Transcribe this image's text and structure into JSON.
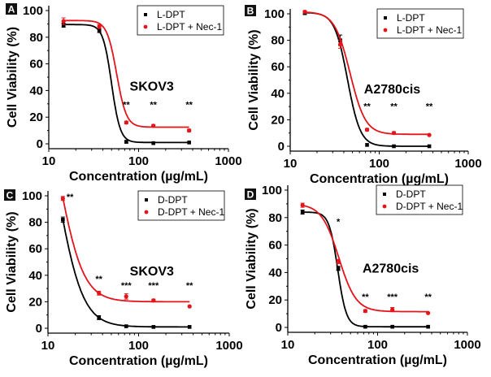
{
  "colors": {
    "control": "#000000",
    "nec": "#e3141a"
  },
  "chart_data": [
    {
      "panel": "A",
      "type": "scatter+line",
      "cell_line": "SKOV3",
      "xlabel": "Concentration (µg/mL)",
      "ylabel": "Cell Viability (%)",
      "xscale": "log",
      "xlim": [
        10,
        1000
      ],
      "ylim": [
        0,
        100
      ],
      "xticks": [
        "10",
        "100",
        "1000"
      ],
      "yticks": [
        "0",
        "20",
        "40",
        "60",
        "80",
        "100"
      ],
      "legend_position": "top-right",
      "x": [
        14.6,
        36.5,
        73,
        146,
        365
      ],
      "series": [
        {
          "name": "L-DPT",
          "color": "#000000",
          "values": [
            89,
            85,
            1.5,
            0.5,
            1
          ],
          "err": [
            1.5,
            1.5,
            1,
            0.5,
            0.5
          ],
          "fit": {
            "top": 89.5,
            "bottom": 1,
            "ec50": 50,
            "hill": 9
          }
        },
        {
          "name": "L-DPT + Nec-1",
          "color": "#e3141a",
          "values": [
            92,
            88,
            16,
            13.5,
            10
          ],
          "err": [
            2.5,
            1.5,
            1,
            1,
            1
          ],
          "fit": {
            "top": 92.5,
            "bottom": 12.5,
            "ec50": 57,
            "hill": 8
          }
        }
      ],
      "annotations": [
        {
          "text": "**",
          "x": 73,
          "y": 27
        },
        {
          "text": "**",
          "x": 146,
          "y": 27
        },
        {
          "text": "**",
          "x": 365,
          "y": 27
        }
      ]
    },
    {
      "panel": "B",
      "type": "scatter+line",
      "cell_line": "A2780cis",
      "xlabel": "Concentration (µg/mL)",
      "ylabel": "Cell Viability (%)",
      "xscale": "log",
      "xlim": [
        10,
        1000
      ],
      "ylim": [
        0,
        100
      ],
      "xticks": [
        "10",
        "100",
        "1000"
      ],
      "yticks": [
        "0",
        "20",
        "40",
        "60",
        "80",
        "100"
      ],
      "legend_position": "top-right",
      "x": [
        14.6,
        36.5,
        73,
        146,
        365
      ],
      "series": [
        {
          "name": "L-DPT",
          "color": "#000000",
          "values": [
            100.5,
            80,
            1,
            0,
            0
          ],
          "err": [
            1,
            4,
            0.5,
            0.5,
            0.5
          ],
          "fit": {
            "top": 101,
            "bottom": 0,
            "ec50": 44,
            "hill": 6
          }
        },
        {
          "name": "L-DPT + Nec-1",
          "color": "#e3141a",
          "values": [
            101.5,
            77,
            12.5,
            10,
            8.5
          ],
          "err": [
            1,
            3,
            1,
            1,
            0.5
          ],
          "fit": {
            "top": 101.5,
            "bottom": 9,
            "ec50": 47,
            "hill": 5
          }
        }
      ],
      "annotations": [
        {
          "text": "**",
          "x": 73,
          "y": 28
        },
        {
          "text": "**",
          "x": 146,
          "y": 28
        },
        {
          "text": "**",
          "x": 365,
          "y": 28
        }
      ]
    },
    {
      "panel": "C",
      "type": "scatter+line",
      "cell_line": "SKOV3",
      "xlabel": "Concentration (µg/mL)",
      "ylabel": "Cell Viability (%)",
      "xscale": "log",
      "xlim": [
        10,
        1000
      ],
      "ylim": [
        0,
        100
      ],
      "xticks": [
        "10",
        "100",
        "1000"
      ],
      "yticks": [
        "0",
        "20",
        "40",
        "60",
        "80",
        "100"
      ],
      "legend_position": "top-right",
      "x": [
        14.6,
        36.5,
        73,
        146,
        365
      ],
      "series": [
        {
          "name": "D-DPT",
          "color": "#000000",
          "values": [
            82,
            8,
            1.5,
            1,
            1
          ],
          "err": [
            2,
            1.5,
            0.5,
            0.5,
            0.5
          ],
          "fit": {
            "top": 200,
            "bottom": 1,
            "ec50": 13,
            "hill": 3.2
          }
        },
        {
          "name": "D-DPT + Nec-1",
          "color": "#e3141a",
          "values": [
            98,
            26.5,
            24,
            21,
            16.5
          ],
          "err": [
            1.5,
            1.5,
            2,
            1,
            0.5
          ],
          "fit": {
            "top": 200,
            "bottom": 20,
            "ec50": 13.5,
            "hill": 3.3
          }
        }
      ],
      "annotations": [
        {
          "text": "**",
          "x": 17.5,
          "y": 97
        },
        {
          "text": "**",
          "x": 36.5,
          "y": 35
        },
        {
          "text": "***",
          "x": 73,
          "y": 30
        },
        {
          "text": "***",
          "x": 146,
          "y": 30
        },
        {
          "text": "**",
          "x": 365,
          "y": 30
        }
      ]
    },
    {
      "panel": "D",
      "type": "scatter+line",
      "cell_line": "A2780cis",
      "xlabel": "Concentration (µg/mL)",
      "ylabel": "Cell Viability (%)",
      "xscale": "log",
      "xlim": [
        10,
        1000
      ],
      "ylim": [
        0,
        100
      ],
      "xticks": [
        "10",
        "100",
        "1000"
      ],
      "yticks": [
        "0",
        "20",
        "40",
        "60",
        "80",
        "100"
      ],
      "legend_position": "top-right",
      "x": [
        14.6,
        36.5,
        73,
        146,
        365
      ],
      "series": [
        {
          "name": "D-DPT",
          "color": "#000000",
          "values": [
            84,
            43,
            0.5,
            0.5,
            0.5
          ],
          "err": [
            1.5,
            1.5,
            0.5,
            0.5,
            0.5
          ],
          "fit": {
            "top": 84,
            "bottom": 0.5,
            "ec50": 36,
            "hill": 9
          }
        },
        {
          "name": "D-DPT + Nec-1",
          "color": "#e3141a",
          "values": [
            89,
            48,
            12,
            13,
            10.5
          ],
          "err": [
            1.5,
            1.5,
            1,
            1.5,
            0.5
          ],
          "fit": {
            "top": 90,
            "bottom": 11.5,
            "ec50": 37,
            "hill": 4.5
          }
        }
      ],
      "annotations": [
        {
          "text": "*",
          "x": 36.5,
          "y": 75
        },
        {
          "text": "**",
          "x": 73,
          "y": 20
        },
        {
          "text": "***",
          "x": 146,
          "y": 20
        },
        {
          "text": "**",
          "x": 365,
          "y": 20
        }
      ]
    }
  ]
}
